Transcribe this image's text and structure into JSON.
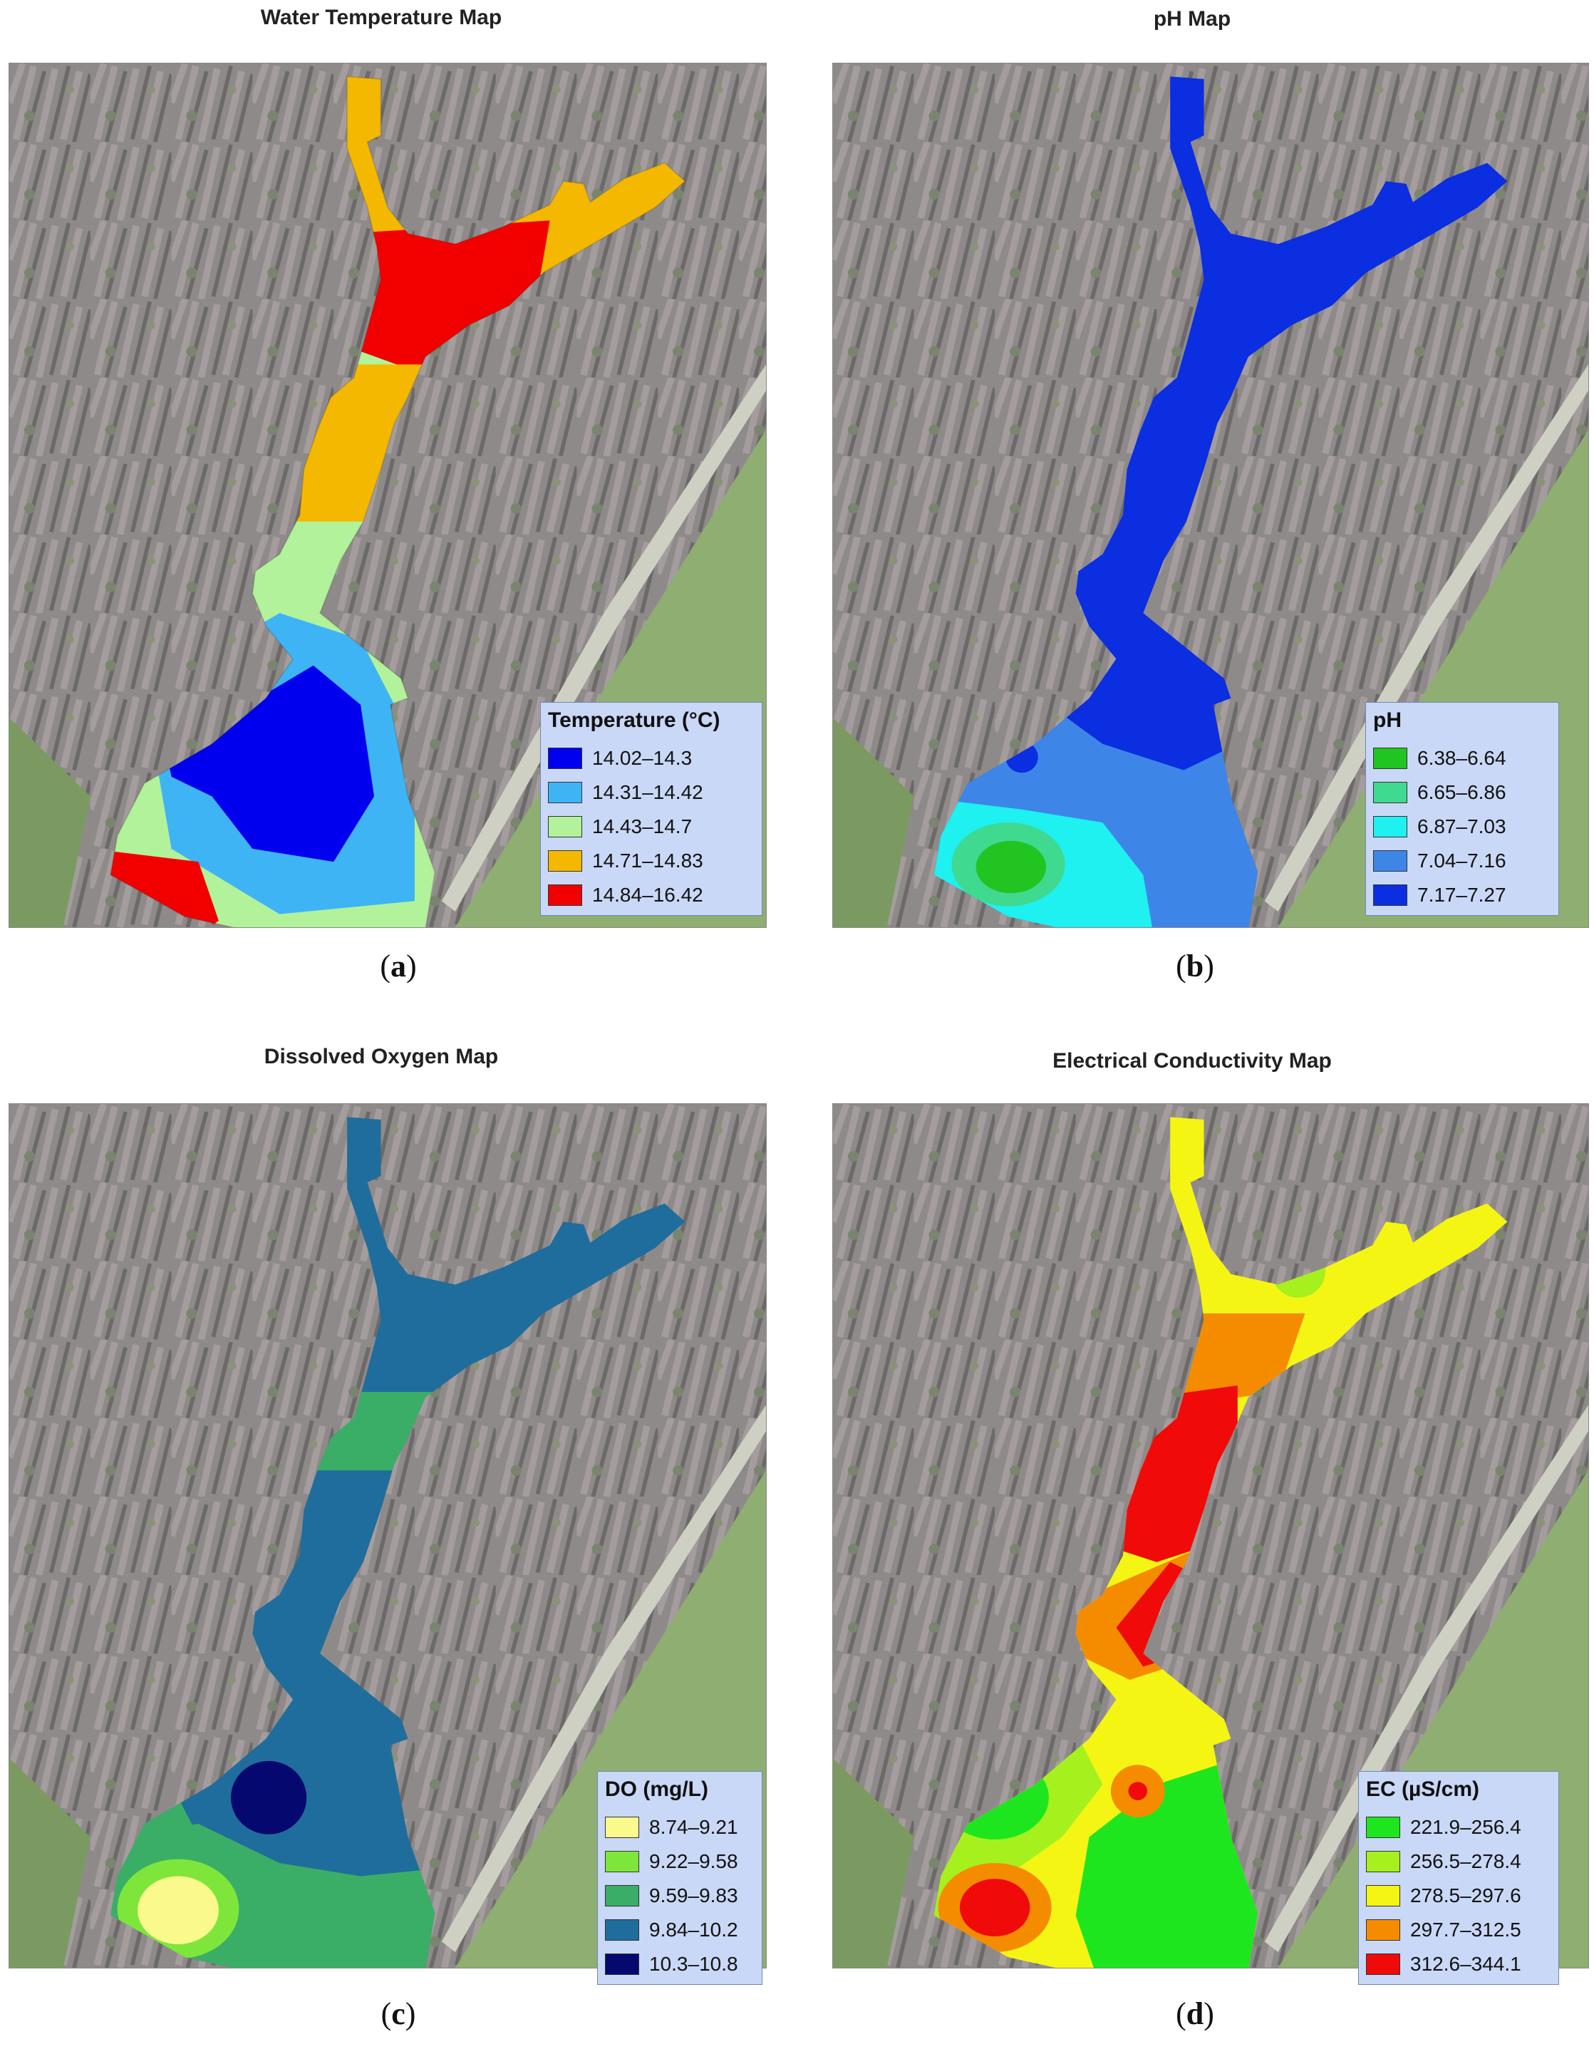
{
  "panels": [
    {
      "title": "Water Temperature Map",
      "caption": "a",
      "legend": {
        "title": "Temperature (°C)",
        "items": [
          {
            "label": "14.02–14.3",
            "color": "#0000ee"
          },
          {
            "label": "14.31–14.42",
            "color": "#3fb4f5"
          },
          {
            "label": "14.43–14.7",
            "color": "#b2f29a"
          },
          {
            "label": "14.71–14.83",
            "color": "#f5b800"
          },
          {
            "label": "14.84–16.42",
            "color": "#f20000"
          }
        ]
      }
    },
    {
      "title": "pH Map",
      "caption": "b",
      "legend": {
        "title": "pH",
        "items": [
          {
            "label": "6.38–6.64",
            "color": "#22c422"
          },
          {
            "label": "6.65–6.86",
            "color": "#3fd98f"
          },
          {
            "label": "6.87–7.03",
            "color": "#1ff0f0"
          },
          {
            "label": "7.04–7.16",
            "color": "#3d86e8"
          },
          {
            "label": "7.17–7.27",
            "color": "#0a2ee0"
          }
        ]
      }
    },
    {
      "title": "Dissolved Oxygen Map",
      "caption": "c",
      "legend": {
        "title": "DO (mg/L)",
        "items": [
          {
            "label": "8.74–9.21",
            "color": "#fafa8c"
          },
          {
            "label": "9.22–9.58",
            "color": "#7ee63a"
          },
          {
            "label": "9.59–9.83",
            "color": "#3aae66"
          },
          {
            "label": "9.84–10.2",
            "color": "#1f6d9c"
          },
          {
            "label": "10.3–10.8",
            "color": "#05086e"
          }
        ]
      }
    },
    {
      "title": "Electrical Conductivity Map",
      "caption": "d",
      "legend": {
        "title": "EC (µS/cm)",
        "items": [
          {
            "label": "221.9–256.4",
            "color": "#1ee61e"
          },
          {
            "label": "256.5–278.4",
            "color": "#a6f01e"
          },
          {
            "label": "278.5–297.6",
            "color": "#f5f514"
          },
          {
            "label": "297.7–312.5",
            "color": "#f58c00"
          },
          {
            "label": "312.6–344.1",
            "color": "#f00a0a"
          }
        ]
      }
    }
  ]
}
